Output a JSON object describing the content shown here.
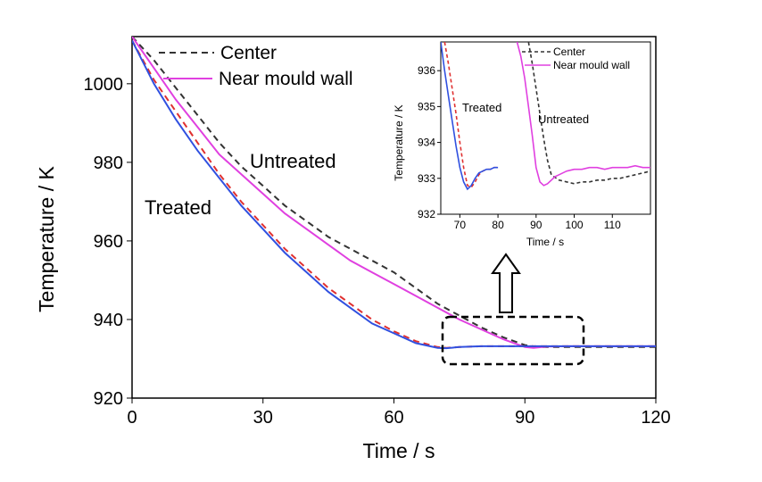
{
  "chart_data": [
    {
      "type": "line",
      "xlabel": "Time / s",
      "ylabel": "Temperature / K",
      "xlim": [
        0,
        120
      ],
      "ylim": [
        920,
        1012
      ],
      "xticks": [
        0,
        30,
        60,
        90,
        120
      ],
      "xtick_labels": [
        "0",
        "30",
        "60",
        "90",
        "120"
      ],
      "yticks": [
        920,
        940,
        960,
        980,
        1000
      ],
      "ytick_labels": [
        "920",
        "940",
        "960",
        "980",
        "1000"
      ],
      "grid": false,
      "legend": "top-left",
      "colors": {
        "center": "#333333",
        "near_wall": "#e040e0",
        "treated_near_wall": "#3050e0",
        "treated_center": "#e03030"
      },
      "annotations": [
        "Untreated",
        "Treated"
      ],
      "series": [
        {
          "name": "Center",
          "group": "Untreated",
          "style": "dashed",
          "color": "#333333",
          "x": [
            0,
            5,
            10,
            15,
            20,
            25,
            30,
            35,
            40,
            45,
            50,
            55,
            60,
            65,
            70,
            75,
            80,
            85,
            90,
            93,
            95,
            100,
            110,
            120
          ],
          "y": [
            1012,
            1006,
            999,
            992,
            985,
            979,
            974,
            969,
            965,
            961,
            958,
            955,
            952,
            948,
            944,
            941,
            938,
            935.5,
            933.5,
            933,
            933,
            933,
            933,
            933
          ]
        },
        {
          "name": "Near mould wall",
          "group": "Untreated",
          "style": "solid",
          "color": "#e040e0",
          "x": [
            0,
            5,
            10,
            15,
            20,
            25,
            30,
            35,
            40,
            45,
            50,
            55,
            60,
            65,
            70,
            75,
            80,
            85,
            90,
            92,
            95,
            100,
            110,
            120
          ],
          "y": [
            1012,
            1004,
            996,
            989,
            982,
            977,
            972,
            967,
            963,
            959,
            955,
            952,
            949,
            946,
            943,
            940,
            937.5,
            935,
            933,
            932.8,
            933.1,
            933.2,
            933.2,
            933.2
          ]
        },
        {
          "group": "Treated",
          "style": "dashed",
          "color": "#e03030",
          "x": [
            0,
            5,
            10,
            15,
            20,
            25,
            30,
            35,
            40,
            45,
            50,
            55,
            60,
            65,
            70,
            72,
            75,
            80,
            90,
            100,
            110,
            120
          ],
          "y": [
            1011,
            1001,
            993,
            985,
            977,
            970,
            964,
            958,
            953,
            948,
            944,
            940,
            937,
            934.5,
            933,
            932.8,
            933,
            933.2,
            933.2,
            933.2,
            933.2,
            933.2
          ]
        },
        {
          "group": "Treated",
          "style": "solid",
          "color": "#3050e0",
          "x": [
            0,
            5,
            10,
            15,
            20,
            25,
            30,
            35,
            40,
            45,
            50,
            55,
            60,
            65,
            70,
            72,
            75,
            80,
            90,
            100,
            110,
            120
          ],
          "y": [
            1011,
            1000,
            991,
            983,
            976,
            969,
            963,
            957,
            952,
            947,
            943,
            939,
            936.5,
            934,
            932.8,
            932.7,
            933,
            933.2,
            933.2,
            933.2,
            933.2,
            933.2
          ]
        }
      ]
    },
    {
      "type": "line",
      "xlabel": "Time / s",
      "ylabel": "Temperature / K",
      "xlim": [
        65,
        120
      ],
      "ylim": [
        932,
        936.8
      ],
      "xticks": [
        70,
        80,
        90,
        100,
        110
      ],
      "xtick_labels": [
        "70",
        "80",
        "90",
        "100",
        "110"
      ],
      "yticks": [
        932,
        933,
        934,
        935,
        936
      ],
      "ytick_labels": [
        "932",
        "933",
        "934",
        "935",
        "936"
      ],
      "legend": "top-right",
      "annotations": [
        "Treated",
        "Untreated"
      ],
      "series": [
        {
          "name": "Center",
          "group": "Untreated",
          "style": "dashed",
          "color": "#333333",
          "x": [
            88,
            89,
            90,
            91,
            92,
            93,
            94,
            96,
            98,
            100,
            102,
            104,
            106,
            108,
            110,
            112,
            114,
            116,
            118,
            120
          ],
          "y": [
            936.8,
            936.2,
            935.5,
            934.8,
            934.1,
            933.5,
            933.1,
            932.95,
            932.9,
            932.85,
            932.9,
            932.9,
            932.95,
            932.95,
            933.0,
            933.0,
            933.05,
            933.1,
            933.15,
            933.2
          ]
        },
        {
          "name": "Near mould wall",
          "group": "Untreated",
          "style": "solid",
          "color": "#e040e0",
          "x": [
            85,
            86,
            87,
            88,
            89,
            90,
            91,
            92,
            93,
            94,
            95,
            96,
            98,
            100,
            102,
            104,
            106,
            108,
            110,
            112,
            114,
            116,
            118,
            120
          ],
          "y": [
            936.8,
            936.4,
            935.8,
            935.0,
            934.2,
            933.3,
            932.9,
            932.8,
            932.85,
            932.95,
            933.05,
            933.1,
            933.2,
            933.25,
            933.25,
            933.3,
            933.3,
            933.25,
            933.3,
            933.3,
            933.3,
            933.35,
            933.3,
            933.3
          ]
        },
        {
          "group": "Treated",
          "style": "dashed",
          "color": "#e03030",
          "x": [
            66,
            67,
            68,
            69,
            70,
            71,
            72,
            73,
            74,
            75,
            76,
            77,
            78,
            79,
            80
          ],
          "y": [
            936.8,
            936.2,
            935.5,
            934.8,
            934.0,
            933.3,
            932.8,
            932.75,
            932.9,
            933.1,
            933.2,
            933.25,
            933.25,
            933.3,
            933.3
          ]
        },
        {
          "group": "Treated",
          "style": "solid",
          "color": "#3050e0",
          "x": [
            65,
            66,
            67,
            68,
            69,
            70,
            71,
            72,
            73,
            74,
            75,
            76,
            77,
            78,
            79,
            80
          ],
          "y": [
            936.8,
            936.0,
            935.3,
            934.6,
            933.9,
            933.3,
            932.9,
            932.7,
            932.8,
            933.0,
            933.15,
            933.2,
            933.25,
            933.25,
            933.3,
            933.3
          ]
        }
      ]
    }
  ]
}
